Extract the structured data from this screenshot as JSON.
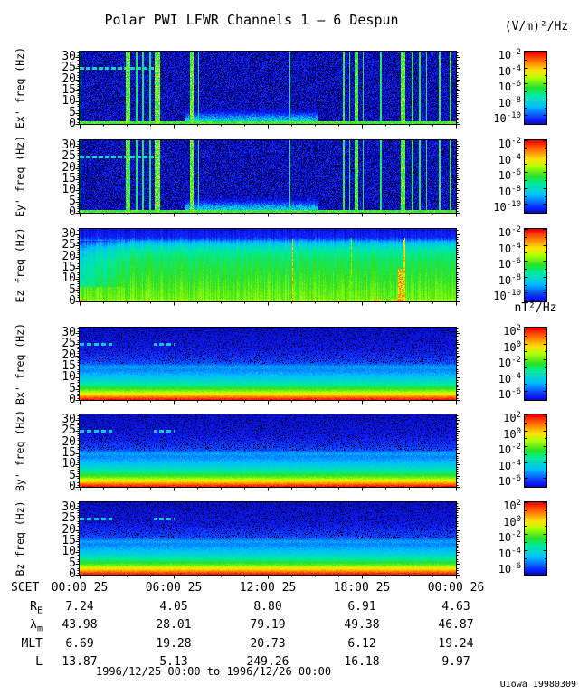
{
  "title": "Polar PWI LFWR Channels 1 — 6 Despun",
  "credit": "UIowa 19980309",
  "chart_data": {
    "type": "heatmap",
    "title": "Polar PWI LFWR Channels 1 — 6 Despun",
    "time_range": "1996/12/25 00:00 to 1996/12/26 00:00",
    "credit": "UIowa 19980309",
    "x_axis": {
      "prefix": "SCET",
      "ticks": [
        "00:00 25",
        "06:00 25",
        "12:00 25",
        "18:00 25",
        "00:00 26"
      ],
      "hours_span": 24,
      "minor_step_hours": 1.5,
      "major_step_hours": 6
    },
    "y_axis": {
      "ticks": [
        0,
        5,
        10,
        15,
        20,
        25,
        30
      ],
      "max": 32.5,
      "minor_step": 1,
      "unit": "Hz"
    },
    "colorbars": {
      "e": {
        "unit": "(V/m)²/Hz",
        "tick_exponents": [
          "-2",
          "-4",
          "-6",
          "-8",
          "-10"
        ]
      },
      "b": {
        "unit": "nT²/Hz",
        "tick_exponents": [
          "2",
          "0",
          "-2",
          "-4",
          "-6"
        ]
      }
    },
    "panels": [
      {
        "label": "Ex' freq (Hz)",
        "group": "e",
        "style": "e-dark",
        "seed": 101
      },
      {
        "label": "Ey' freq (Hz)",
        "group": "e",
        "style": "e-dark",
        "seed": 202
      },
      {
        "label": "Ez freq (Hz)",
        "group": "e",
        "style": "e-green",
        "seed": 303
      },
      {
        "label": "Bx' freq (Hz)",
        "group": "b",
        "style": "b-grad",
        "seed": 404
      },
      {
        "label": "By' freq (Hz)",
        "group": "b",
        "style": "b-grad",
        "seed": 505
      },
      {
        "label": "Bz freq (Hz)",
        "group": "b",
        "style": "b-grad",
        "seed": 606
      }
    ],
    "ephemeris": [
      {
        "label": "R",
        "sub": "E",
        "values": [
          "7.24",
          "4.05",
          "8.80",
          "6.91",
          "4.63"
        ]
      },
      {
        "label": "λ",
        "sub": "m",
        "values": [
          "43.98",
          "28.01",
          "79.19",
          "49.38",
          "46.87"
        ]
      },
      {
        "label": "MLT",
        "sub": "",
        "values": [
          "6.69",
          "19.28",
          "20.73",
          "6.12",
          "19.24"
        ]
      },
      {
        "label": "L",
        "sub": "",
        "values": [
          "13.87",
          "5.13",
          "249.26",
          "16.18",
          "9.97"
        ]
      }
    ],
    "render": {
      "stripes_e": [
        [
          0.002,
          0.004,
          0.45
        ],
        [
          0.128,
          0.012,
          0.6
        ],
        [
          0.15,
          0.006,
          0.52
        ],
        [
          0.168,
          0.005,
          0.5
        ],
        [
          0.186,
          0.005,
          0.48
        ],
        [
          0.206,
          0.014,
          0.62
        ],
        [
          0.296,
          0.01,
          0.62
        ],
        [
          0.315,
          0.004,
          0.5
        ],
        [
          0.558,
          0.003,
          0.5
        ],
        [
          0.7,
          0.005,
          0.55
        ],
        [
          0.716,
          0.004,
          0.5
        ],
        [
          0.734,
          0.008,
          0.58
        ],
        [
          0.752,
          0.004,
          0.5
        ],
        [
          0.8,
          0.004,
          0.52
        ],
        [
          0.858,
          0.01,
          0.6
        ],
        [
          0.884,
          0.006,
          0.55
        ],
        [
          0.903,
          0.005,
          0.52
        ],
        [
          0.921,
          0.004,
          0.5
        ],
        [
          0.955,
          0.005,
          0.55
        ],
        [
          0.985,
          0.005,
          0.58
        ]
      ],
      "ez_profile": [
        [
          0,
          0.65
        ],
        [
          0.05,
          0.62
        ],
        [
          0.35,
          0.56
        ],
        [
          0.55,
          0.52
        ],
        [
          0.68,
          0.47
        ],
        [
          0.76,
          0.4
        ],
        [
          0.83,
          0.3
        ],
        [
          0.88,
          0.18
        ],
        [
          1,
          0.13
        ]
      ],
      "ez_lines": [
        [
          0.565,
          0.0035,
          0.88
        ],
        [
          0.722,
          0.0025,
          0.66
        ],
        [
          0.862,
          0.0035,
          0.85
        ]
      ],
      "b_profile": [
        [
          0,
          0.99
        ],
        [
          0.02,
          0.96
        ],
        [
          0.05,
          0.87
        ],
        [
          0.09,
          0.75
        ],
        [
          0.13,
          0.63
        ],
        [
          0.18,
          0.53
        ],
        [
          0.24,
          0.44
        ],
        [
          0.32,
          0.34
        ],
        [
          0.42,
          0.26
        ],
        [
          0.55,
          0.19
        ],
        [
          0.72,
          0.14
        ],
        [
          1,
          0.11
        ]
      ],
      "b_line_segments": [
        [
          0.0,
          0.085
        ],
        [
          0.195,
          0.25
        ]
      ],
      "line_freq_band": [
        0.755,
        0.792
      ]
    }
  }
}
